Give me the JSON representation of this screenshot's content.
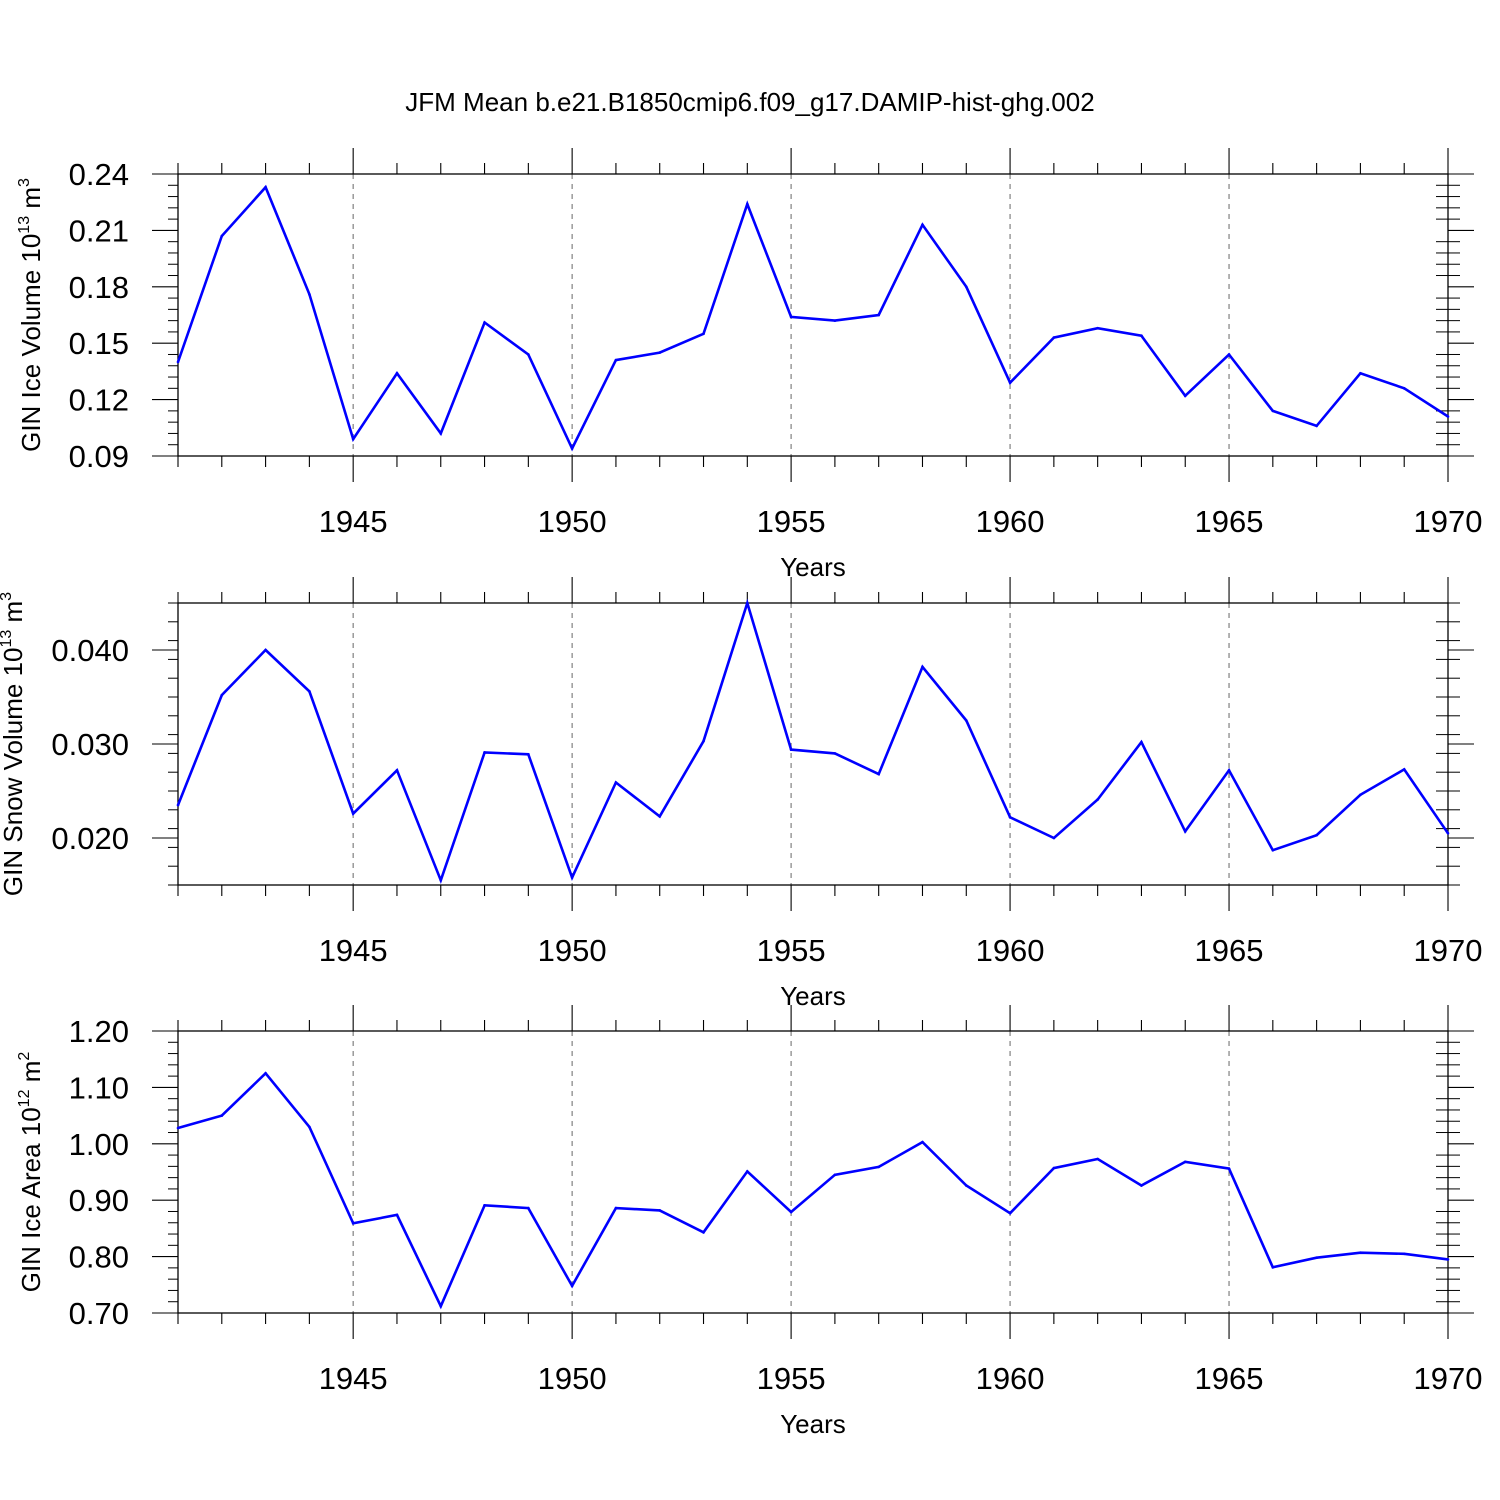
{
  "figure_title": "JFM Mean b.e21.B1850cmip6.f09_g17.DAMIP-hist-ghg.002",
  "colors": {
    "series": "#0000ff",
    "axes": "#000000",
    "gridline": "#808080"
  },
  "chart_data": [
    {
      "type": "line",
      "xlabel": "Years",
      "ylabel": {
        "prefix": "GIN Ice Volume 10",
        "sup1": "13",
        "mid": " m",
        "sup2": "3"
      },
      "xlim": [
        1941,
        1970
      ],
      "ylim": [
        0.09,
        0.24
      ],
      "yticks": [
        0.09,
        0.12,
        0.15,
        0.18,
        0.21,
        0.24
      ],
      "ytick_labels": [
        "0.09",
        "0.12",
        "0.15",
        "0.18",
        "0.21",
        "0.24"
      ],
      "xticks": [
        1945,
        1950,
        1955,
        1960,
        1965,
        1970
      ],
      "xtick_labels": [
        "1945",
        "1950",
        "1955",
        "1960",
        "1965",
        "1970"
      ],
      "grid": "dashed vertical lines at major x ticks",
      "x": [
        1941,
        1942,
        1943,
        1944,
        1945,
        1946,
        1947,
        1948,
        1949,
        1950,
        1951,
        1952,
        1953,
        1954,
        1955,
        1956,
        1957,
        1958,
        1959,
        1960,
        1961,
        1962,
        1963,
        1964,
        1965,
        1966,
        1967,
        1968,
        1969,
        1970
      ],
      "series": [
        {
          "values": [
            0.14,
            0.207,
            0.233,
            0.176,
            0.099,
            0.134,
            0.102,
            0.161,
            0.144,
            0.094,
            0.141,
            0.145,
            0.155,
            0.224,
            0.164,
            0.162,
            0.165,
            0.213,
            0.18,
            0.129,
            0.153,
            0.158,
            0.154,
            0.122,
            0.144,
            0.114,
            0.106,
            0.134,
            0.126,
            0.111
          ]
        }
      ]
    },
    {
      "type": "line",
      "xlabel": "Years",
      "ylabel": {
        "prefix": "GIN Snow Volume 10",
        "sup1": "13",
        "mid": " m",
        "sup2": "3"
      },
      "xlim": [
        1941,
        1970
      ],
      "ylim": [
        0.015,
        0.045
      ],
      "yticks": [
        0.02,
        0.03,
        0.04
      ],
      "ytick_labels": [
        "0.020",
        "0.030",
        "0.040"
      ],
      "xticks": [
        1945,
        1950,
        1955,
        1960,
        1965,
        1970
      ],
      "xtick_labels": [
        "1945",
        "1950",
        "1955",
        "1960",
        "1965",
        "1970"
      ],
      "grid": "dashed vertical lines at major x ticks",
      "x": [
        1941,
        1942,
        1943,
        1944,
        1945,
        1946,
        1947,
        1948,
        1949,
        1950,
        1951,
        1952,
        1953,
        1954,
        1955,
        1956,
        1957,
        1958,
        1959,
        1960,
        1961,
        1962,
        1963,
        1964,
        1965,
        1966,
        1967,
        1968,
        1969,
        1970
      ],
      "series": [
        {
          "values": [
            0.0235,
            0.0352,
            0.04,
            0.0356,
            0.0226,
            0.0272,
            0.0155,
            0.0291,
            0.0289,
            0.0158,
            0.0259,
            0.0223,
            0.0303,
            0.045,
            0.0294,
            0.029,
            0.0268,
            0.0382,
            0.0325,
            0.0222,
            0.02,
            0.0241,
            0.0302,
            0.0207,
            0.0272,
            0.0187,
            0.0203,
            0.0246,
            0.0273,
            0.0205
          ]
        }
      ]
    },
    {
      "type": "line",
      "xlabel": "Years",
      "ylabel": {
        "prefix": "GIN Ice Area 10",
        "sup1": "12",
        "mid": " m",
        "sup2": "2"
      },
      "xlim": [
        1941,
        1970
      ],
      "ylim": [
        0.7,
        1.2
      ],
      "yticks": [
        0.7,
        0.8,
        0.9,
        1.0,
        1.1,
        1.2
      ],
      "ytick_labels": [
        "0.70",
        "0.80",
        "0.90",
        "1.00",
        "1.10",
        "1.20"
      ],
      "xticks": [
        1945,
        1950,
        1955,
        1960,
        1965,
        1970
      ],
      "xtick_labels": [
        "1945",
        "1950",
        "1955",
        "1960",
        "1965",
        "1970"
      ],
      "grid": "dashed vertical lines at major x ticks",
      "x": [
        1941,
        1942,
        1943,
        1944,
        1945,
        1946,
        1947,
        1948,
        1949,
        1950,
        1951,
        1952,
        1953,
        1954,
        1955,
        1956,
        1957,
        1958,
        1959,
        1960,
        1961,
        1962,
        1963,
        1964,
        1965,
        1966,
        1967,
        1968,
        1969,
        1970
      ],
      "series": [
        {
          "values": [
            1.028,
            1.05,
            1.125,
            1.03,
            0.859,
            0.874,
            0.712,
            0.891,
            0.886,
            0.748,
            0.886,
            0.882,
            0.843,
            0.951,
            0.879,
            0.945,
            0.959,
            1.003,
            0.926,
            0.877,
            0.957,
            0.973,
            0.926,
            0.968,
            0.956,
            0.781,
            0.798,
            0.807,
            0.805,
            0.795
          ]
        }
      ]
    }
  ]
}
